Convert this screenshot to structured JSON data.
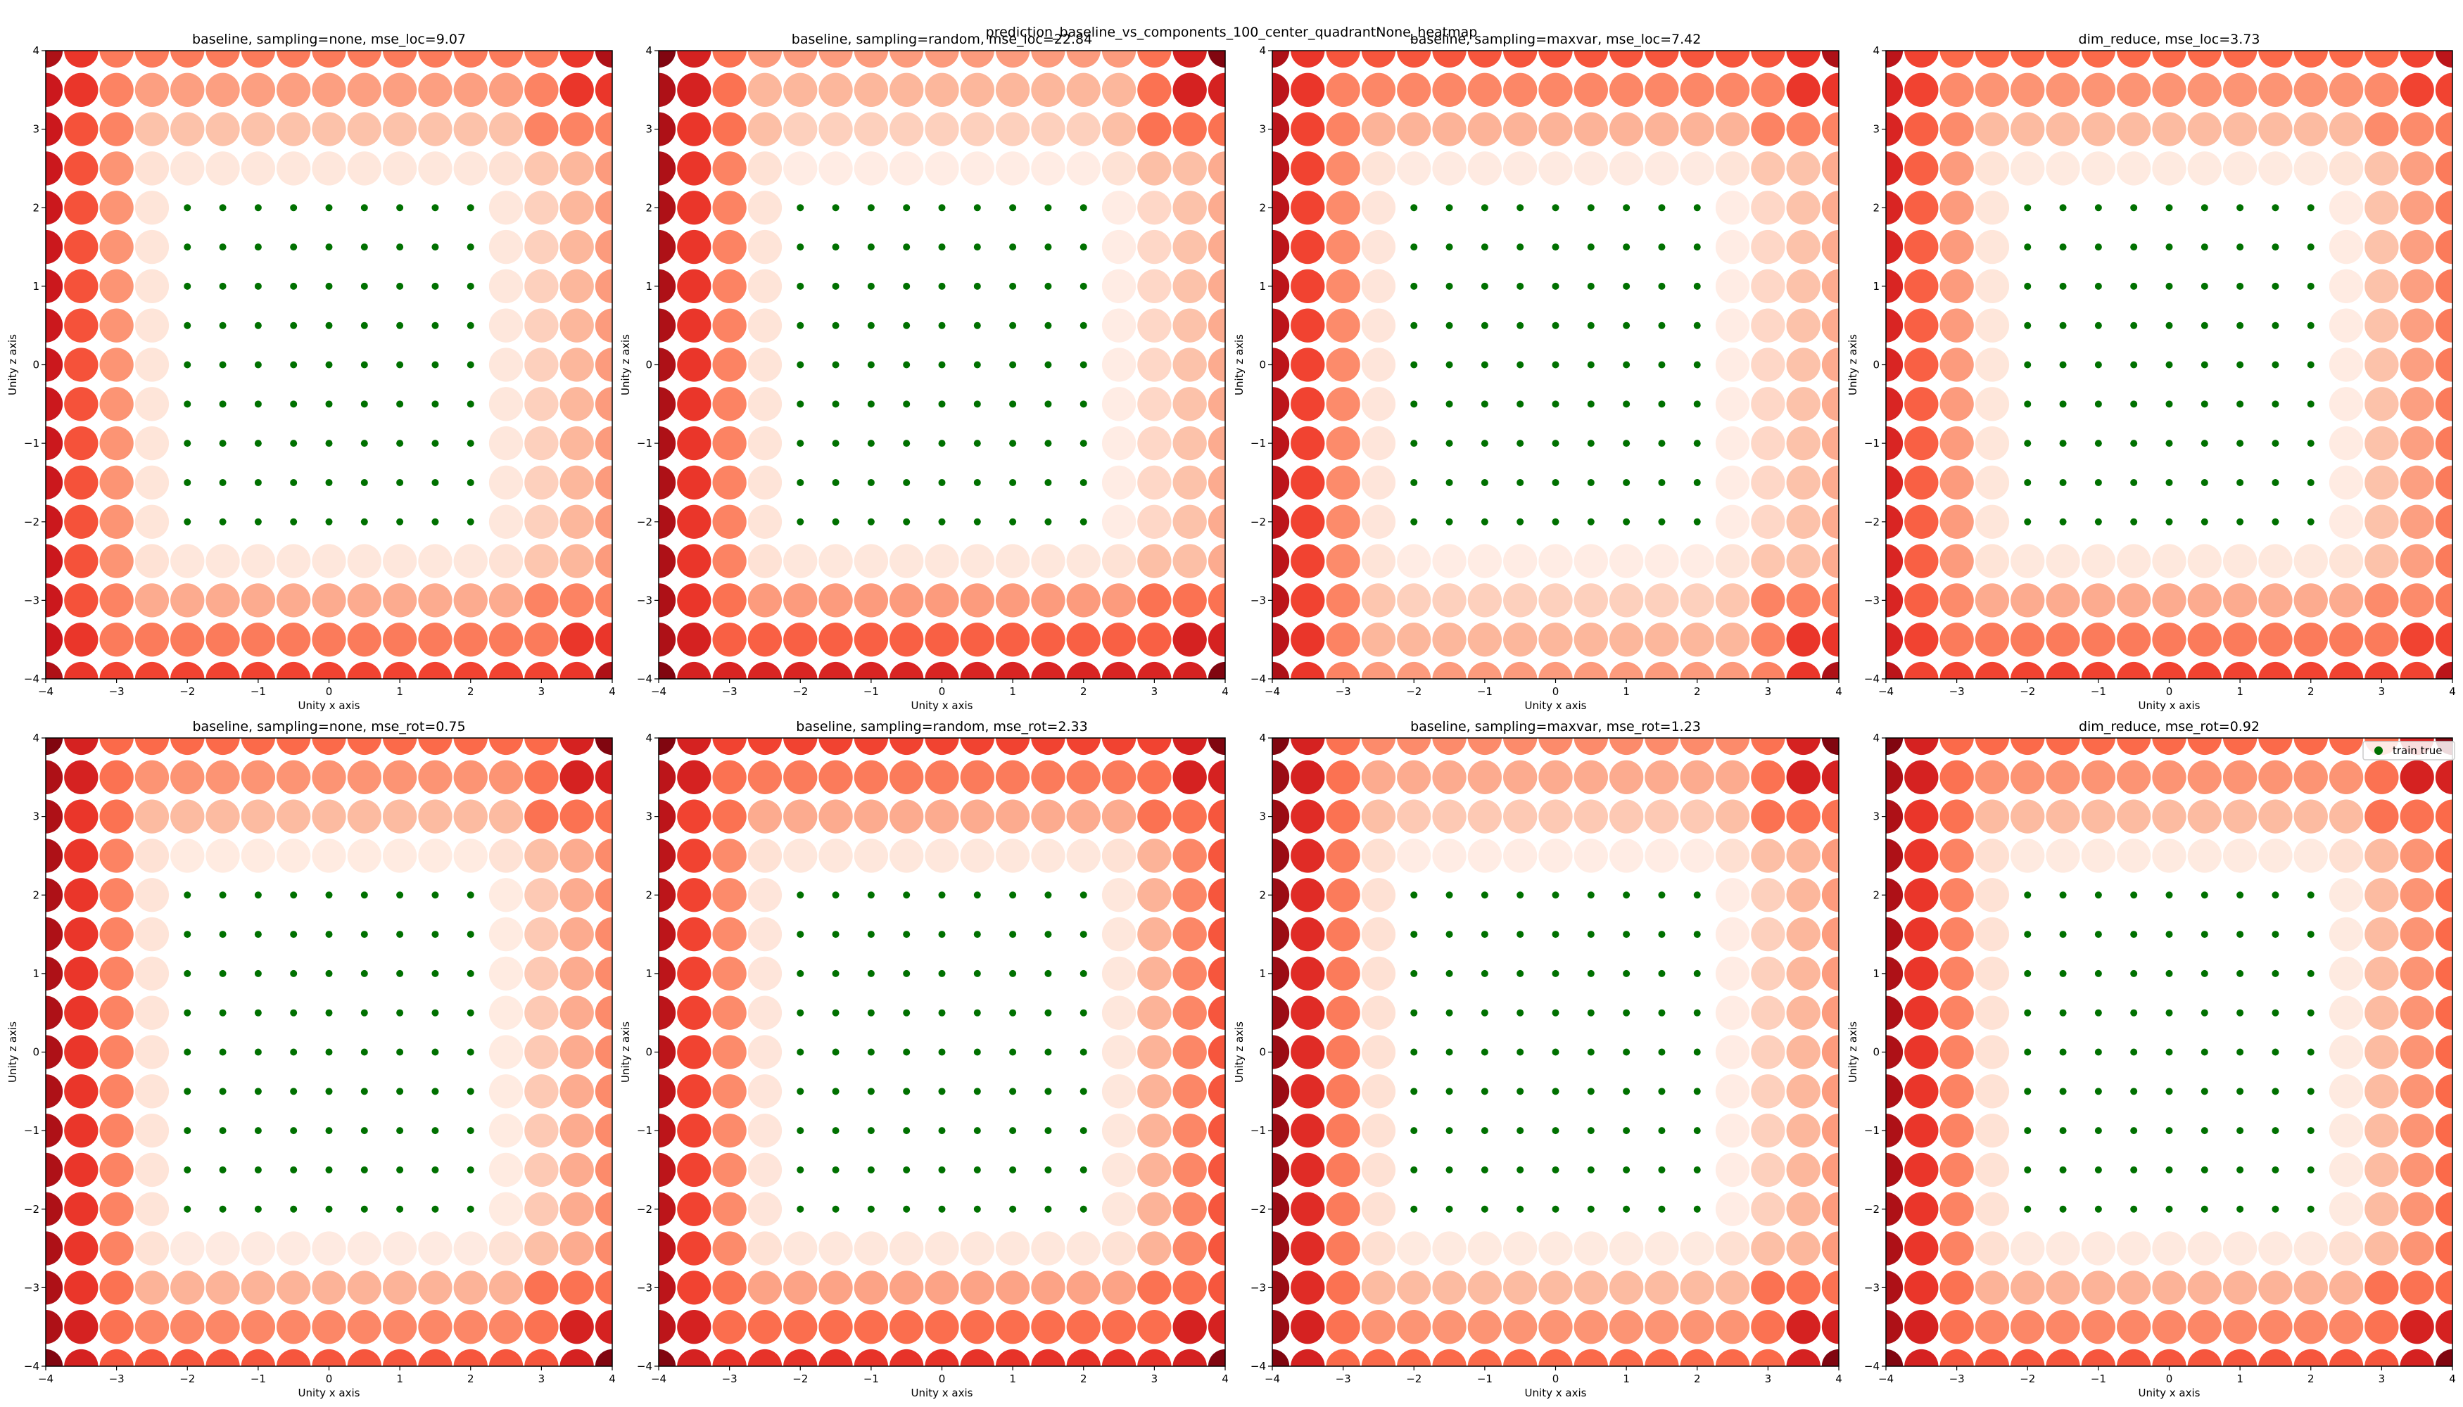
{
  "figure": {
    "title": "prediction_baseline_vs_components_100_center_quadrantNone_heatmap"
  },
  "legend": {
    "label": "train true",
    "color": "#007000"
  },
  "colors": {
    "colormap": "Reds",
    "train_marker": "#007000"
  },
  "chart_data": [
    {
      "type": "scatter",
      "title": "baseline, sampling=none, mse_loc=9.07",
      "xlabel": "Unity x axis",
      "ylabel": "Unity z axis",
      "xlim": [
        -4,
        4
      ],
      "ylim": [
        -4,
        4
      ],
      "xticks": [
        "−4",
        "−3",
        "−2",
        "−1",
        "0",
        "1",
        "2",
        "3",
        "4"
      ],
      "yticks": [
        "−4",
        "−3",
        "−2",
        "−1",
        "0",
        "1",
        "2",
        "3",
        "4"
      ],
      "metric": "mse_loc",
      "metric_value": 9.07,
      "grid": {
        "x_values": [
          -4,
          -3.5,
          -3,
          -2.5,
          -2,
          -1.5,
          -1,
          -0.5,
          0,
          0.5,
          1,
          1.5,
          2,
          2.5,
          3,
          3.5,
          4
        ],
        "y_values": [
          -4,
          -3.5,
          -3,
          -2.5,
          -2,
          -1.5,
          -1,
          -0.5,
          0,
          0.5,
          1,
          1.5,
          2,
          2.5,
          3,
          3.5,
          4
        ]
      },
      "train_region": {
        "x": [
          -2,
          2
        ],
        "y": [
          -2,
          2
        ]
      },
      "intensity_model": {
        "corner": 0.85,
        "left": 0.75,
        "right": 0.35,
        "bottom": 0.6,
        "top": 0.45,
        "outer_gap": 0.0,
        "inner_gap": 0.08,
        "ring_falloff": 0.5
      }
    },
    {
      "type": "scatter",
      "title": "baseline, sampling=random, mse_loc=22.84",
      "xlabel": "Unity x axis",
      "ylabel": "Unity z axis",
      "xlim": [
        -4,
        4
      ],
      "ylim": [
        -4,
        4
      ],
      "xticks": [
        "−4",
        "−3",
        "−2",
        "−1",
        "0",
        "1",
        "2",
        "3",
        "4"
      ],
      "yticks": [
        "−4",
        "−3",
        "−2",
        "−1",
        "0",
        "1",
        "2",
        "3",
        "4"
      ],
      "metric": "mse_loc",
      "metric_value": 22.84,
      "grid": {
        "x_values": [
          -4,
          -3.5,
          -3,
          -2.5,
          -2,
          -1.5,
          -1,
          -0.5,
          0,
          0.5,
          1,
          1.5,
          2,
          2.5,
          3,
          3.5,
          4
        ],
        "y_values": [
          -4,
          -3.5,
          -3,
          -2.5,
          -2,
          -1.5,
          -1,
          -0.5,
          0,
          0.5,
          1,
          1.5,
          2,
          2.5,
          3,
          3.5,
          4
        ]
      },
      "train_region": {
        "x": [
          -2,
          2
        ],
        "y": [
          -2,
          2
        ]
      },
      "intensity_model": {
        "corner": 0.95,
        "left": 0.85,
        "right": 0.3,
        "bottom": 0.7,
        "top": 0.35,
        "outer_gap": 0.15,
        "inner_gap": 0.05,
        "ring_falloff": 0.45
      }
    },
    {
      "type": "scatter",
      "title": "baseline, sampling=maxvar, mse_loc=7.42",
      "xlabel": "Unity x axis",
      "ylabel": "Unity z axis",
      "xlim": [
        -4,
        4
      ],
      "ylim": [
        -4,
        4
      ],
      "xticks": [
        "−4",
        "−3",
        "−2",
        "−1",
        "0",
        "1",
        "2",
        "3",
        "4"
      ],
      "yticks": [
        "−4",
        "−3",
        "−2",
        "−1",
        "0",
        "1",
        "2",
        "3",
        "4"
      ],
      "metric": "mse_loc",
      "metric_value": 7.42,
      "grid": {
        "x_values": [
          -4,
          -3.5,
          -3,
          -2.5,
          -2,
          -1.5,
          -1,
          -0.5,
          0,
          0.5,
          1,
          1.5,
          2,
          2.5,
          3,
          3.5,
          4
        ],
        "y_values": [
          -4,
          -3.5,
          -3,
          -2.5,
          -2,
          -1.5,
          -1,
          -0.5,
          0,
          0.5,
          1,
          1.5,
          2,
          2.5,
          3,
          3.5,
          4
        ]
      },
      "train_region": {
        "x": [
          -2,
          2
        ],
        "y": [
          -2,
          2
        ]
      },
      "intensity_model": {
        "corner": 0.85,
        "left": 0.8,
        "right": 0.3,
        "bottom": 0.35,
        "top": 0.55,
        "outer_gap": 0.0,
        "inner_gap": 0.05,
        "ring_falloff": 0.45
      }
    },
    {
      "type": "scatter",
      "title": "dim_reduce, mse_loc=3.73",
      "xlabel": "Unity x axis",
      "ylabel": "Unity z axis",
      "xlim": [
        -4,
        4
      ],
      "ylim": [
        -4,
        4
      ],
      "xticks": [
        "−4",
        "−3",
        "−2",
        "−1",
        "0",
        "1",
        "2",
        "3",
        "4"
      ],
      "yticks": [
        "−4",
        "−3",
        "−2",
        "−1",
        "0",
        "1",
        "2",
        "3",
        "4"
      ],
      "metric": "mse_loc",
      "metric_value": 3.73,
      "grid": {
        "x_values": [
          -4,
          -3.5,
          -3,
          -2.5,
          -2,
          -1.5,
          -1,
          -0.5,
          0,
          0.5,
          1,
          1.5,
          2,
          2.5,
          3,
          3.5,
          4
        ],
        "y_values": [
          -4,
          -3.5,
          -3,
          -2.5,
          -2,
          -1.5,
          -1,
          -0.5,
          0,
          0.5,
          1,
          1.5,
          2,
          2.5,
          3,
          3.5,
          4
        ]
      },
      "train_region": {
        "x": [
          -2,
          2
        ],
        "y": [
          -2,
          2
        ]
      },
      "intensity_model": {
        "corner": 0.8,
        "left": 0.7,
        "right": 0.45,
        "bottom": 0.6,
        "top": 0.5,
        "outer_gap": 0.0,
        "inner_gap": 0.05,
        "ring_falloff": 0.5
      }
    },
    {
      "type": "scatter",
      "title": "baseline, sampling=none, mse_rot=0.75",
      "xlabel": "Unity x axis",
      "ylabel": "Unity z axis",
      "xlim": [
        -4,
        4
      ],
      "ylim": [
        -4,
        4
      ],
      "xticks": [
        "−4",
        "−3",
        "−2",
        "−1",
        "0",
        "1",
        "2",
        "3",
        "4"
      ],
      "yticks": [
        "−4",
        "−3",
        "−2",
        "−1",
        "0",
        "1",
        "2",
        "3",
        "4"
      ],
      "metric": "mse_rot",
      "metric_value": 0.75,
      "grid": {
        "x_values": [
          -4,
          -3.5,
          -3,
          -2.5,
          -2,
          -1.5,
          -1,
          -0.5,
          0,
          0.5,
          1,
          1.5,
          2,
          2.5,
          3,
          3.5,
          4
        ],
        "y_values": [
          -4,
          -3.5,
          -3,
          -2.5,
          -2,
          -1.5,
          -1,
          -0.5,
          0,
          0.5,
          1,
          1.5,
          2,
          2.5,
          3,
          3.5,
          4
        ]
      },
      "train_region": {
        "x": [
          -2,
          2
        ],
        "y": [
          -2,
          2
        ]
      },
      "intensity_model": {
        "corner": 0.95,
        "left": 0.85,
        "right": 0.4,
        "bottom": 0.55,
        "top": 0.5,
        "outer_gap": 0.0,
        "inner_gap": 0.06,
        "ring_falloff": 0.45
      }
    },
    {
      "type": "scatter",
      "title": "baseline, sampling=random, mse_rot=2.33",
      "xlabel": "Unity x axis",
      "ylabel": "Unity z axis",
      "xlim": [
        -4,
        4
      ],
      "ylim": [
        -4,
        4
      ],
      "xticks": [
        "−4",
        "−3",
        "−2",
        "−1",
        "0",
        "1",
        "2",
        "3",
        "4"
      ],
      "yticks": [
        "−4",
        "−3",
        "−2",
        "−1",
        "0",
        "1",
        "2",
        "3",
        "4"
      ],
      "metric": "mse_rot",
      "metric_value": 2.33,
      "grid": {
        "x_values": [
          -4,
          -3.5,
          -3,
          -2.5,
          -2,
          -1.5,
          -1,
          -0.5,
          0,
          0.5,
          1,
          1.5,
          2,
          2.5,
          3,
          3.5,
          4
        ],
        "y_values": [
          -4,
          -3.5,
          -3,
          -2.5,
          -2,
          -1.5,
          -1,
          -0.5,
          0,
          0.5,
          1,
          1.5,
          2,
          2.5,
          3,
          3.5,
          4
        ]
      },
      "train_region": {
        "x": [
          -2,
          2
        ],
        "y": [
          -2,
          2
        ]
      },
      "intensity_model": {
        "corner": 0.95,
        "left": 0.8,
        "right": 0.55,
        "bottom": 0.65,
        "top": 0.6,
        "outer_gap": 0.0,
        "inner_gap": 0.08,
        "ring_falloff": 0.45
      }
    },
    {
      "type": "scatter",
      "title": "baseline, sampling=maxvar, mse_rot=1.23",
      "xlabel": "Unity x axis",
      "ylabel": "Unity z axis",
      "xlim": [
        -4,
        4
      ],
      "ylim": [
        -4,
        4
      ],
      "xticks": [
        "−4",
        "−3",
        "−2",
        "−1",
        "0",
        "1",
        "2",
        "3",
        "4"
      ],
      "yticks": [
        "−4",
        "−3",
        "−2",
        "−1",
        "0",
        "1",
        "2",
        "3",
        "4"
      ],
      "metric": "mse_rot",
      "metric_value": 1.23,
      "grid": {
        "x_values": [
          -4,
          -3.5,
          -3,
          -2.5,
          -2,
          -1.5,
          -1,
          -0.5,
          0,
          0.5,
          1,
          1.5,
          2,
          2.5,
          3,
          3.5,
          4
        ],
        "y_values": [
          -4,
          -3.5,
          -3,
          -2.5,
          -2,
          -1.5,
          -1,
          -0.5,
          0,
          0.5,
          1,
          1.5,
          2,
          2.5,
          3,
          3.5,
          4
        ]
      },
      "train_region": {
        "x": [
          -2,
          2
        ],
        "y": [
          -2,
          2
        ]
      },
      "intensity_model": {
        "corner": 0.95,
        "left": 0.9,
        "right": 0.35,
        "bottom": 0.5,
        "top": 0.4,
        "outer_gap": 0.0,
        "inner_gap": 0.05,
        "ring_falloff": 0.5
      }
    },
    {
      "type": "scatter",
      "title": "dim_reduce, mse_rot=0.92",
      "xlabel": "Unity x axis",
      "ylabel": "Unity z axis",
      "xlim": [
        -4,
        4
      ],
      "ylim": [
        -4,
        4
      ],
      "xticks": [
        "−4",
        "−3",
        "−2",
        "−1",
        "0",
        "1",
        "2",
        "3",
        "4"
      ],
      "yticks": [
        "−4",
        "−3",
        "−2",
        "−1",
        "0",
        "1",
        "2",
        "3",
        "4"
      ],
      "metric": "mse_rot",
      "metric_value": 0.92,
      "grid": {
        "x_values": [
          -4,
          -3.5,
          -3,
          -2.5,
          -2,
          -1.5,
          -1,
          -0.5,
          0,
          0.5,
          1,
          1.5,
          2,
          2.5,
          3,
          3.5,
          4
        ],
        "y_values": [
          -4,
          -3.5,
          -3,
          -2.5,
          -2,
          -1.5,
          -1,
          -0.5,
          0,
          0.5,
          1,
          1.5,
          2,
          2.5,
          3,
          3.5,
          4
        ]
      },
      "train_region": {
        "x": [
          -2,
          2
        ],
        "y": [
          -2,
          2
        ]
      },
      "intensity_model": {
        "corner": 0.95,
        "left": 0.85,
        "right": 0.5,
        "bottom": 0.55,
        "top": 0.5,
        "outer_gap": 0.0,
        "inner_gap": 0.05,
        "ring_falloff": 0.5
      }
    }
  ]
}
